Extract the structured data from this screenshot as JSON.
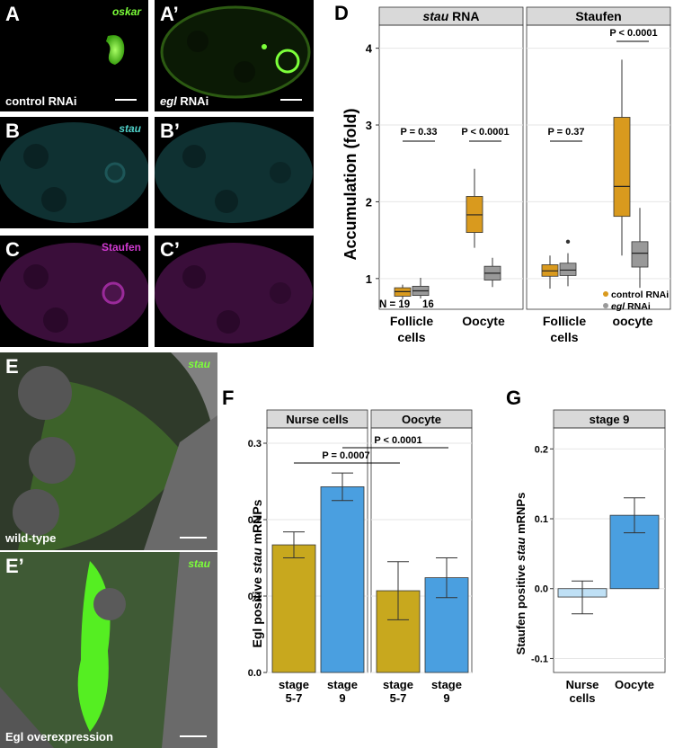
{
  "panels": {
    "A": {
      "letter": "A",
      "channel": "oskar",
      "caption": "control RNAi"
    },
    "A2": {
      "letter": "A’"
    },
    "A2_caption": {
      "prefix": "",
      "italic": "egl",
      "suffix": " RNAi"
    },
    "B": {
      "letter": "B",
      "channel": "stau"
    },
    "B2": {
      "letter": "B’"
    },
    "C": {
      "letter": "C",
      "channel": "Staufen"
    },
    "C2": {
      "letter": "C’"
    },
    "E": {
      "letter": "E",
      "channel": "stau",
      "caption": "wild-type"
    },
    "E2": {
      "letter": "E’",
      "channel": "stau",
      "caption": "Egl overexpression"
    }
  },
  "colors": {
    "control": "#D99A1E",
    "egl": "#999999",
    "olive": "#C8A81E",
    "blue": "#4A9FE0",
    "lightblue": "#BFE0F5",
    "oskar": "#7CFF3A",
    "stau": "#4FD0C8",
    "staufen": "#D03AD0"
  },
  "figD": {
    "letter": "D",
    "ylabel": "Accumulation (fold)",
    "strip_left_italic": "stau",
    "strip_left_rest": " RNA",
    "strip_right": "Staufen",
    "yticks": [
      "1",
      "2",
      "3",
      "4"
    ],
    "pvals": [
      "P = 0.33",
      "P < 0.0001",
      "P = 0.37",
      "P < 0.0001"
    ],
    "n_label": "N = 19",
    "n2_label": "16",
    "xlabels_left": [
      "Follicle",
      "cells",
      "Oocyte"
    ],
    "xlabels_right": [
      "Follicle",
      "cells",
      "oocyte"
    ],
    "legend": {
      "control": "control RNAi",
      "egl_italic": "egl",
      "egl_rest": " RNAi"
    }
  },
  "figF": {
    "letter": "F",
    "ylabel_pre": "Egl positive ",
    "ylabel_italic": "stau",
    "ylabel_post": " mRNPs",
    "strip_left": "Nurse cells",
    "strip_right": "Oocyte",
    "yticks": [
      "0.0",
      "0.1",
      "0.2",
      "0.3"
    ],
    "p1": "P = 0.0007",
    "p2": "P < 0.0001",
    "xlabels": [
      [
        "stage",
        "5-7"
      ],
      [
        "stage",
        "9"
      ],
      [
        "stage",
        "5-7"
      ],
      [
        "stage",
        "9"
      ]
    ]
  },
  "figG": {
    "letter": "G",
    "ylabel_pre": "Staufen positive ",
    "ylabel_italic": "stau",
    "ylabel_post": " mRNPs",
    "strip": "stage 9",
    "yticks": [
      "-0.1",
      "0.0",
      "0.1",
      "0.2"
    ],
    "xlabels": [
      [
        "Nurse",
        "cells"
      ],
      [
        "Oocyte"
      ]
    ]
  },
  "chart_data": [
    {
      "type": "box",
      "title": "stau RNA",
      "ylabel": "Accumulation (fold)",
      "ylim": [
        0.6,
        4.3
      ],
      "categories": [
        "Follicle cells",
        "Oocyte"
      ],
      "series": [
        {
          "name": "control RNAi",
          "boxes": [
            {
              "min": 0.73,
              "q1": 0.77,
              "median": 0.83,
              "q3": 0.88,
              "max": 0.92
            },
            {
              "min": 1.4,
              "q1": 1.6,
              "median": 1.83,
              "q3": 2.07,
              "max": 2.43
            }
          ]
        },
        {
          "name": "egl RNAi",
          "boxes": [
            {
              "min": 0.74,
              "q1": 0.78,
              "median": 0.84,
              "q3": 0.9,
              "max": 1.01
            },
            {
              "min": 0.89,
              "q1": 0.98,
              "median": 1.07,
              "q3": 1.16,
              "max": 1.27
            }
          ]
        }
      ]
    },
    {
      "type": "box",
      "title": "Staufen",
      "ylabel": "Accumulation (fold)",
      "ylim": [
        0.6,
        4.3
      ],
      "categories": [
        "Follicle cells",
        "oocyte"
      ],
      "series": [
        {
          "name": "control RNAi",
          "boxes": [
            {
              "min": 0.87,
              "q1": 1.03,
              "median": 1.1,
              "q3": 1.18,
              "max": 1.3
            },
            {
              "min": 1.3,
              "q1": 1.81,
              "median": 2.2,
              "q3": 3.1,
              "max": 3.85
            }
          ]
        },
        {
          "name": "egl RNAi",
          "boxes": [
            {
              "min": 0.9,
              "q1": 1.04,
              "median": 1.11,
              "q3": 1.2,
              "max": 1.33,
              "outliers": [
                1.48
              ]
            },
            {
              "min": 0.88,
              "q1": 1.15,
              "median": 1.33,
              "q3": 1.48,
              "max": 1.92
            }
          ]
        }
      ]
    },
    {
      "type": "bar",
      "title": "Nurse cells / Oocyte",
      "ylabel": "Egl positive stau mRNPs",
      "ylim": [
        0,
        0.32
      ],
      "categories": [
        "Nurse cells stage 5-7",
        "Nurse cells stage 9",
        "Oocyte stage 5-7",
        "Oocyte stage 9"
      ],
      "values": [
        0.167,
        0.243,
        0.107,
        0.124
      ],
      "errors": [
        [
          0.15,
          0.184
        ],
        [
          0.225,
          0.261
        ],
        [
          0.069,
          0.145
        ],
        [
          0.098,
          0.15
        ]
      ]
    },
    {
      "type": "bar",
      "title": "stage 9",
      "ylabel": "Staufen positive stau mRNPs",
      "ylim": [
        -0.12,
        0.23
      ],
      "categories": [
        "Nurse cells",
        "Oocyte"
      ],
      "values": [
        -0.012,
        0.105
      ],
      "errors": [
        [
          -0.036,
          0.011
        ],
        [
          0.08,
          0.13
        ]
      ]
    }
  ]
}
